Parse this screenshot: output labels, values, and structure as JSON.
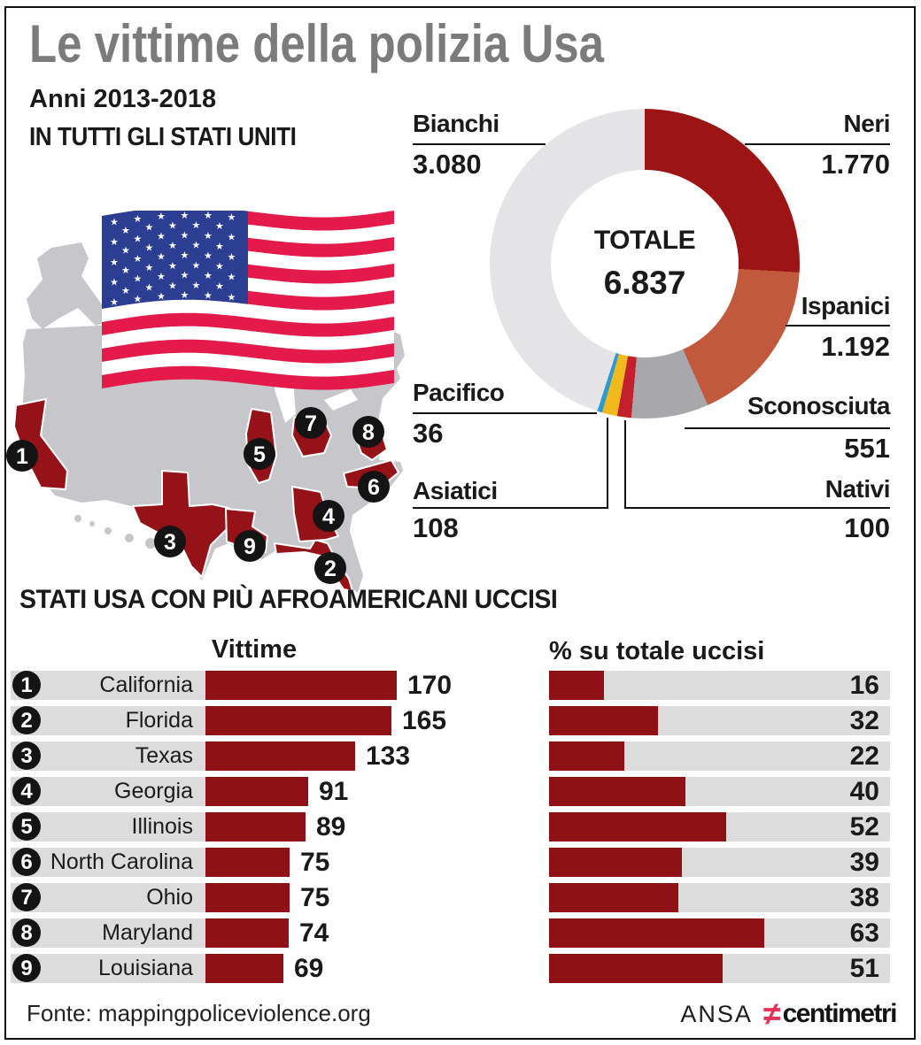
{
  "header": {
    "title": "Le vittime della polizia Usa",
    "subtitle": "Anni 2013-2018",
    "scope": "IN TUTTI GLI STATI UNITI"
  },
  "colors": {
    "title_gray": "#7b7b7b",
    "bar_red": "#8e1117",
    "track_gray": "#dcdcdd",
    "map_gray": "#c7c7cb",
    "map_state_red": "#951219",
    "flag_red": "#e41a4b",
    "flag_blue": "#2c3e91",
    "badge_black": "#141414"
  },
  "chart_data": [
    {
      "type": "pie",
      "title": "Vittime della polizia Usa per etnia, in tutti gli Stati Uniti",
      "labels": [
        "Neri",
        "Ispanici",
        "Sconosciuta",
        "Nativi",
        "Asiatici",
        "Pacifico",
        "Bianchi"
      ],
      "values": [
        1770,
        1192,
        551,
        100,
        108,
        36,
        3080
      ],
      "display_values": [
        "1.770",
        "1.192",
        "551",
        "100",
        "108",
        "36",
        "3.080"
      ],
      "colors": [
        "#9d1414",
        "#c2593c",
        "#a8a8ac",
        "#c4202b",
        "#f0ba1f",
        "#2f9ad2",
        "#e4e4e6"
      ],
      "center_label": "TOTALE",
      "center_value": "6.837",
      "total": 6837,
      "legend_position": "callouts-around-donut",
      "start_angle_deg": 0,
      "direction": "clockwise"
    },
    {
      "type": "bar",
      "title": "Vittime",
      "categories": [
        "California",
        "Florida",
        "Texas",
        "Georgia",
        "Illinois",
        "North Carolina",
        "Ohio",
        "Maryland",
        "Louisiana"
      ],
      "ranks": [
        "1",
        "2",
        "3",
        "4",
        "5",
        "6",
        "7",
        "8",
        "9"
      ],
      "values": [
        170,
        165,
        133,
        91,
        89,
        75,
        75,
        74,
        69
      ],
      "xlim": [
        0,
        170
      ],
      "orientation": "horizontal",
      "grid": false
    },
    {
      "type": "bar",
      "title": "% su totale uccisi",
      "categories": [
        "California",
        "Florida",
        "Texas",
        "Georgia",
        "Illinois",
        "North Carolina",
        "Ohio",
        "Maryland",
        "Louisiana"
      ],
      "values": [
        16,
        32,
        22,
        40,
        52,
        39,
        38,
        63,
        51
      ],
      "xlim": [
        0,
        100
      ],
      "orientation": "horizontal",
      "grid": false
    }
  ],
  "section": {
    "title": "STATI USA CON PIÙ AFROAMERICANI UCCISI"
  },
  "map": {
    "badges": [
      {
        "n": "1",
        "state": "California"
      },
      {
        "n": "2",
        "state": "Florida"
      },
      {
        "n": "3",
        "state": "Texas"
      },
      {
        "n": "4",
        "state": "Georgia"
      },
      {
        "n": "5",
        "state": "Illinois"
      },
      {
        "n": "6",
        "state": "North Carolina"
      },
      {
        "n": "7",
        "state": "Ohio"
      },
      {
        "n": "8",
        "state": "Maryland"
      },
      {
        "n": "9",
        "state": "Louisiana"
      }
    ]
  },
  "footer": {
    "source": "Fonte: mappingpoliceviolence.org",
    "agency": "ANSA",
    "logo_symbol": "≠",
    "logo_name": "centimetri"
  }
}
